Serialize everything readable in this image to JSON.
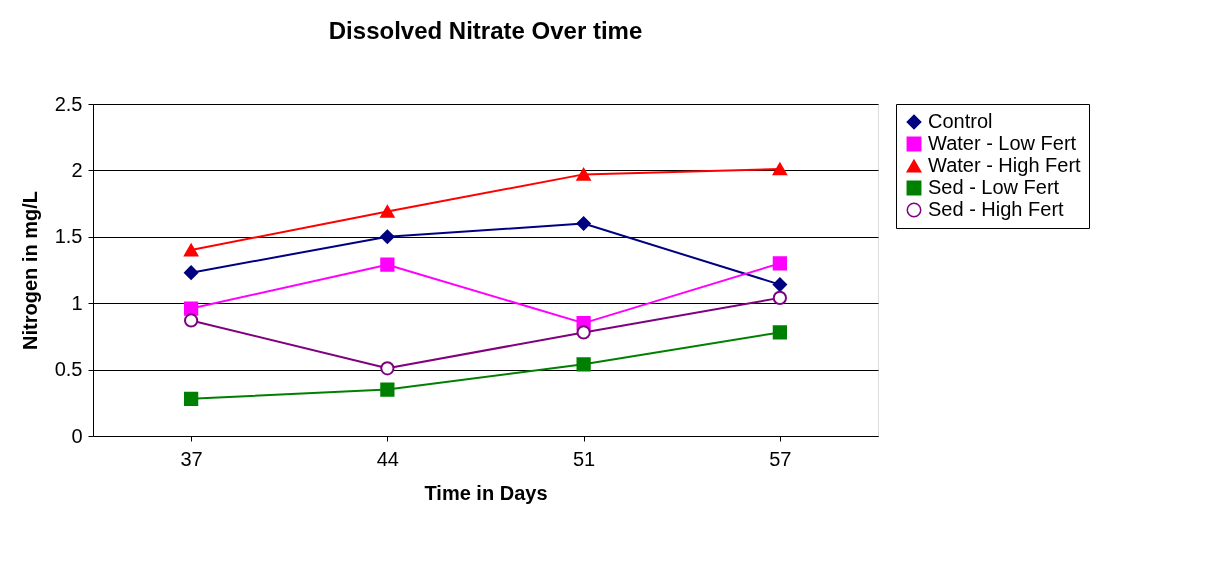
{
  "chart_data": {
    "type": "line",
    "title": "Dissolved Nitrate Over time",
    "xlabel": "Time in Days",
    "ylabel": "Nitrogen in mg/L",
    "categories": [
      "37",
      "44",
      "51",
      "57"
    ],
    "series": [
      {
        "name": "Control",
        "color": "#000080",
        "marker": "diamond",
        "values": [
          1.23,
          1.5,
          1.6,
          1.14
        ]
      },
      {
        "name": "Water - Low Fert",
        "color": "#ff00ff",
        "marker": "square",
        "values": [
          0.96,
          1.29,
          0.85,
          1.3
        ]
      },
      {
        "name": "Water - High Fert",
        "color": "#ff0000",
        "marker": "triangle",
        "values": [
          1.4,
          1.69,
          1.97,
          2.01
        ]
      },
      {
        "name": "Sed - Low Fert",
        "color": "#008000",
        "marker": "square",
        "values": [
          0.28,
          0.35,
          0.54,
          0.78
        ]
      },
      {
        "name": "Sed - High Fert",
        "color": "#800080",
        "marker": "circle",
        "values": [
          0.87,
          0.51,
          0.78,
          1.04
        ]
      }
    ],
    "ylim": [
      0,
      2.5
    ],
    "yticks": [
      {
        "value": 0,
        "label": "0"
      },
      0.5,
      {
        "value": 1,
        "label": "1"
      },
      1.5,
      {
        "value": 2,
        "label": "2"
      },
      2.5
    ],
    "grid": "y",
    "legend": "right",
    "line_style": "solid"
  }
}
